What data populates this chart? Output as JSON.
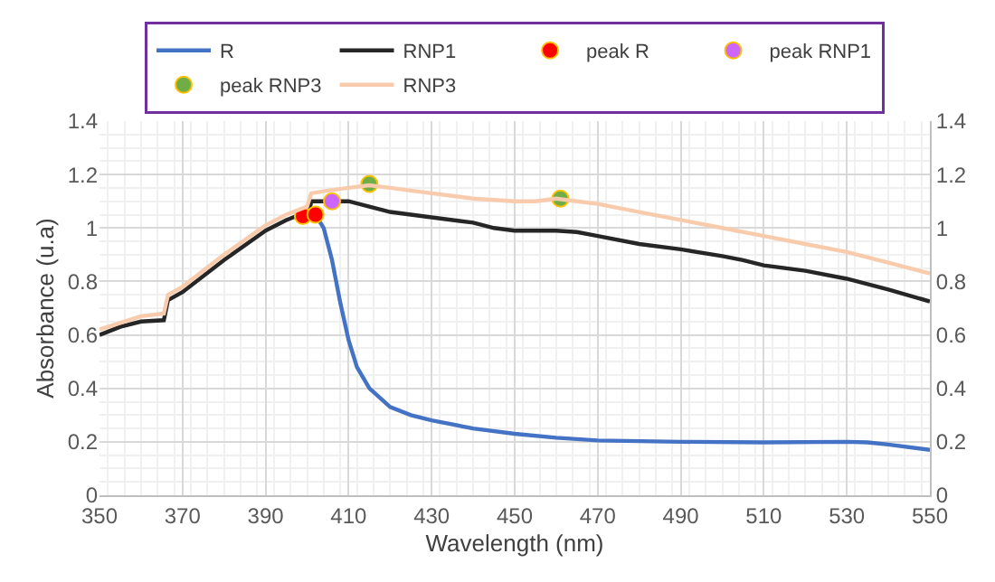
{
  "chart_data": {
    "type": "line",
    "xlabel": "Wavelength (nm)",
    "ylabel": "Absorbance (u.a)",
    "xlim": [
      350,
      550
    ],
    "xticks": [
      350,
      370,
      390,
      410,
      430,
      450,
      470,
      490,
      510,
      530,
      550
    ],
    "ylim": [
      0,
      1.4
    ],
    "yticks": [
      0,
      0.2,
      0.4,
      0.6,
      0.8,
      1,
      1.2,
      1.4
    ],
    "y2lim": [
      0,
      1.4
    ],
    "y2ticks": [
      0,
      0.2,
      0.4,
      0.6,
      0.8,
      1,
      1.2,
      1.4
    ],
    "grid": true,
    "legend": "top",
    "line_style": "solid",
    "series": [
      {
        "name": "R",
        "color": "#4472c4",
        "x": [
          399,
          401,
          402,
          404,
          406,
          408,
          410,
          412,
          415,
          420,
          425,
          430,
          440,
          450,
          460,
          470,
          490,
          510,
          530,
          535,
          540,
          550
        ],
        "values": [
          1.05,
          1.06,
          1.05,
          1.0,
          0.88,
          0.72,
          0.58,
          0.48,
          0.4,
          0.33,
          0.3,
          0.28,
          0.25,
          0.23,
          0.215,
          0.205,
          0.2,
          0.198,
          0.2,
          0.198,
          0.19,
          0.17
        ]
      },
      {
        "name": "RNP1",
        "color": "#262626",
        "x": [
          350,
          355,
          360,
          365.5,
          366.5,
          370,
          380,
          390,
          395,
          400,
          400.5,
          401,
          410,
          415,
          420,
          430,
          440,
          445,
          450,
          460,
          465,
          470,
          480,
          490,
          500,
          505,
          510,
          520,
          530,
          540,
          550
        ],
        "values": [
          0.6,
          0.63,
          0.65,
          0.655,
          0.73,
          0.76,
          0.88,
          0.99,
          1.03,
          1.06,
          1.06,
          1.1,
          1.1,
          1.08,
          1.06,
          1.04,
          1.02,
          1.0,
          0.99,
          0.99,
          0.985,
          0.97,
          0.94,
          0.92,
          0.895,
          0.88,
          0.86,
          0.84,
          0.81,
          0.77,
          0.725
        ]
      },
      {
        "name": "peak R",
        "type": "scatter",
        "marker": "circle",
        "color": "#ff0000",
        "x": [
          399,
          402
        ],
        "values": [
          1.045,
          1.05
        ]
      },
      {
        "name": "peak RNP1",
        "type": "scatter",
        "marker": "circle",
        "color": "#cc66ff",
        "x": [
          406
        ],
        "values": [
          1.1
        ]
      },
      {
        "name": "peak RNP3",
        "type": "scatter",
        "marker": "circle",
        "color": "#70ad47",
        "x": [
          415,
          461
        ],
        "values": [
          1.165,
          1.11
        ]
      },
      {
        "name": "RNP3",
        "color": "#f8cbad",
        "x": [
          350,
          360,
          365.5,
          366.5,
          370,
          380,
          390,
          395,
          400,
          401,
          405,
          410,
          415,
          420,
          430,
          440,
          450,
          455,
          460,
          465,
          470,
          480,
          490,
          500,
          510,
          520,
          530,
          540,
          550
        ],
        "values": [
          0.62,
          0.67,
          0.68,
          0.75,
          0.78,
          0.9,
          1.01,
          1.05,
          1.08,
          1.13,
          1.14,
          1.15,
          1.16,
          1.15,
          1.13,
          1.11,
          1.1,
          1.1,
          1.11,
          1.1,
          1.09,
          1.06,
          1.03,
          1.0,
          0.97,
          0.94,
          0.91,
          0.87,
          0.83
        ]
      }
    ]
  }
}
